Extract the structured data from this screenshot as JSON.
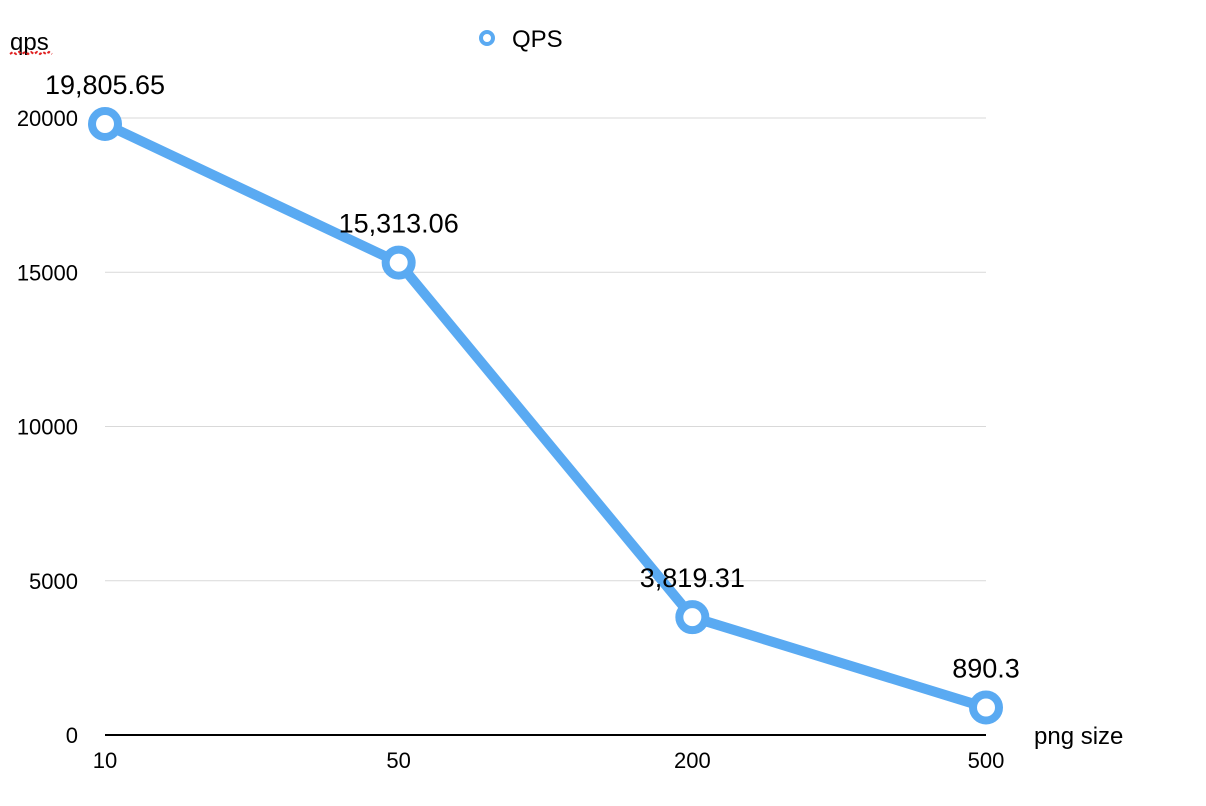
{
  "chart_data": {
    "type": "line",
    "categories": [
      "10",
      "50",
      "200",
      "500"
    ],
    "series": [
      {
        "name": "QPS",
        "values": [
          19805.65,
          15313.06,
          3819.31,
          890.3
        ],
        "labels": [
          "19,805.65",
          "15,313.06",
          "3,819.31",
          "890.3"
        ]
      }
    ],
    "xlabel": "png size",
    "ylabel": "qps",
    "ylim": [
      0,
      20000
    ],
    "yticks": [
      0,
      5000,
      10000,
      15000,
      20000
    ],
    "grid": true,
    "legend": "top-center",
    "colors": {
      "series": "#5aaaf2",
      "grid": "#d9d9d9",
      "axis": "#000000",
      "squiggle": "#e02020"
    }
  }
}
